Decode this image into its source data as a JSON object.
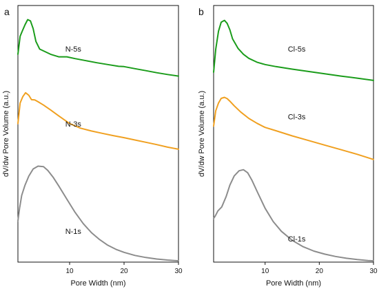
{
  "chart_data": [
    {
      "type": "line",
      "panel_label": "a",
      "xlabel": "Pore Width (nm)",
      "ylabel": "dV/dw Pore Volume (a.u.)",
      "xlim": [
        0.5,
        30
      ],
      "ylim": [
        0,
        1
      ],
      "xticks": [
        10,
        20,
        30
      ],
      "yticks_shown": false,
      "series": [
        {
          "name": "N-5s",
          "color": "#1a9c1a",
          "label_pos": [
            9.2,
            0.821
          ],
          "x": [
            0.5,
            0.9,
            1.3,
            1.8,
            2.3,
            2.8,
            3.3,
            3.8,
            4.5,
            5.5,
            6.5,
            8.0,
            9.5,
            11,
            13,
            15,
            17,
            19,
            20,
            22,
            24,
            26,
            28,
            30
          ],
          "y": [
            0.81,
            0.88,
            0.9,
            0.925,
            0.945,
            0.94,
            0.91,
            0.86,
            0.83,
            0.82,
            0.81,
            0.8,
            0.8,
            0.793,
            0.785,
            0.777,
            0.77,
            0.763,
            0.762,
            0.754,
            0.746,
            0.738,
            0.731,
            0.725
          ]
        },
        {
          "name": "N-3s",
          "color": "#f0a020",
          "label_pos": [
            9.2,
            0.528
          ],
          "x": [
            0.5,
            0.9,
            1.4,
            1.9,
            2.5,
            3.0,
            3.6,
            4.2,
            5.2,
            6.5,
            8.0,
            10,
            12,
            14,
            16,
            18,
            20,
            22,
            24,
            26,
            28,
            30
          ],
          "y": [
            0.54,
            0.62,
            0.645,
            0.66,
            0.65,
            0.633,
            0.632,
            0.625,
            0.612,
            0.593,
            0.57,
            0.54,
            0.522,
            0.511,
            0.502,
            0.493,
            0.485,
            0.476,
            0.467,
            0.458,
            0.448,
            0.44
          ]
        },
        {
          "name": "N-1s",
          "color": "#8c8c8c",
          "label_pos": [
            9.2,
            0.11
          ],
          "x": [
            0.5,
            0.8,
            1.2,
            1.8,
            2.5,
            3.3,
            4.2,
            5.2,
            6.0,
            7.0,
            8.0,
            9.5,
            11,
            12.5,
            14,
            15.5,
            17,
            18.5,
            20,
            22,
            24,
            26,
            28,
            30
          ],
          "y": [
            0.16,
            0.21,
            0.26,
            0.3,
            0.335,
            0.363,
            0.374,
            0.372,
            0.357,
            0.33,
            0.297,
            0.245,
            0.194,
            0.15,
            0.115,
            0.088,
            0.066,
            0.05,
            0.038,
            0.026,
            0.018,
            0.012,
            0.008,
            0.005
          ]
        }
      ]
    },
    {
      "type": "line",
      "panel_label": "b",
      "xlabel": "Pore Width (nm)",
      "ylabel": "dV/dw Pore Volume (a.u.)",
      "xlim": [
        0.5,
        30
      ],
      "ylim": [
        0,
        1
      ],
      "xticks": [
        10,
        20,
        30
      ],
      "yticks_shown": false,
      "series": [
        {
          "name": "Cl-5s",
          "color": "#1a9c1a",
          "label_pos": [
            14.2,
            0.821
          ],
          "x": [
            0.5,
            0.9,
            1.4,
            1.9,
            2.5,
            3.0,
            3.5,
            4.0,
            5.0,
            6.0,
            7.0,
            8.5,
            10,
            12,
            15,
            18,
            21,
            24,
            27,
            30
          ],
          "y": [
            0.74,
            0.83,
            0.9,
            0.935,
            0.942,
            0.93,
            0.905,
            0.87,
            0.833,
            0.81,
            0.794,
            0.779,
            0.77,
            0.762,
            0.752,
            0.743,
            0.734,
            0.725,
            0.717,
            0.708
          ]
        },
        {
          "name": "Cl-3s",
          "color": "#f0a020",
          "label_pos": [
            14.2,
            0.556
          ],
          "x": [
            0.5,
            0.9,
            1.4,
            1.9,
            2.5,
            3.0,
            3.6,
            4.3,
            5.5,
            7.0,
            8.5,
            10,
            12,
            15,
            18,
            21,
            24,
            27,
            30
          ],
          "y": [
            0.53,
            0.59,
            0.62,
            0.638,
            0.642,
            0.637,
            0.625,
            0.609,
            0.585,
            0.56,
            0.541,
            0.525,
            0.512,
            0.492,
            0.474,
            0.456,
            0.438,
            0.42,
            0.4
          ]
        },
        {
          "name": "Cl-1s",
          "color": "#8c8c8c",
          "label_pos": [
            14.2,
            0.08
          ],
          "x": [
            0.5,
            0.8,
            1.3,
            2.0,
            2.8,
            3.5,
            4.3,
            5.2,
            6.0,
            6.8,
            7.6,
            8.6,
            10,
            11.5,
            13,
            15,
            17,
            19,
            21,
            23,
            25,
            27,
            29,
            30
          ],
          "y": [
            0.17,
            0.18,
            0.2,
            0.215,
            0.255,
            0.3,
            0.336,
            0.356,
            0.36,
            0.348,
            0.318,
            0.272,
            0.21,
            0.158,
            0.12,
            0.085,
            0.06,
            0.043,
            0.031,
            0.022,
            0.015,
            0.01,
            0.006,
            0.005
          ]
        }
      ]
    }
  ]
}
